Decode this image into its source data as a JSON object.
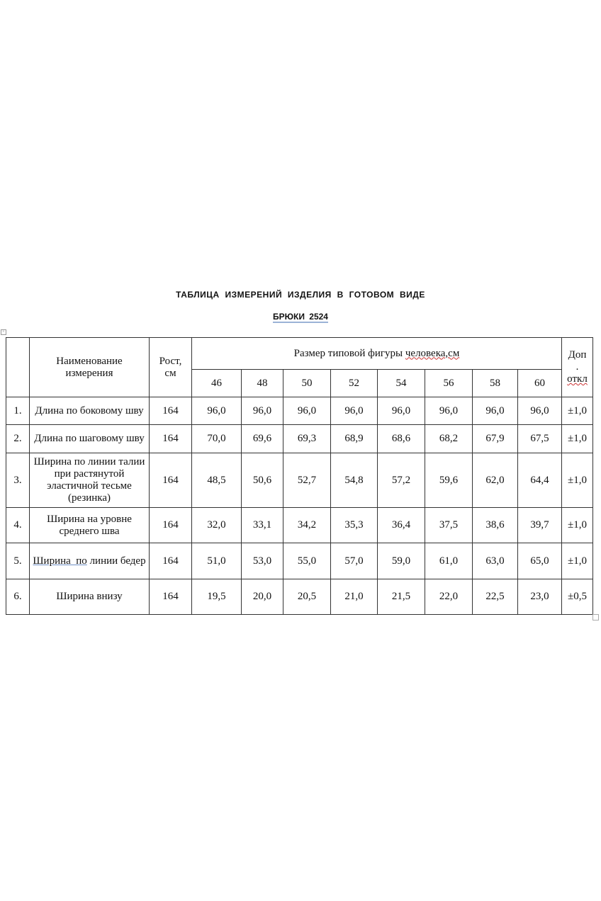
{
  "title": "ТАБЛИЦА ИЗМЕРЕНИЙ ИЗДЕЛИЯ В ГОТОВОМ ВИДЕ",
  "subtitle": "БРЮКИ 2524",
  "table": {
    "headers": {
      "name": "Наименование измерения",
      "height": "Рост, см",
      "size_group": "Размер типовой фигуры человека,см",
      "tolerance_top": "Доп",
      "tolerance_mid": ".",
      "tolerance_bottom": "откл"
    },
    "sizes": [
      "46",
      "48",
      "50",
      "52",
      "54",
      "56",
      "58",
      "60"
    ],
    "rows": [
      {
        "num": "1.",
        "name": "Длина по боковому шву",
        "height": "164",
        "values": [
          "96,0",
          "96,0",
          "96,0",
          "96,0",
          "96,0",
          "96,0",
          "96,0",
          "96,0"
        ],
        "tolerance": "±1,0"
      },
      {
        "num": "2.",
        "name": "Длина по шаговому шву",
        "height": "164",
        "values": [
          "70,0",
          "69,6",
          "69,3",
          "68,9",
          "68,6",
          "68,2",
          "67,9",
          "67,5"
        ],
        "tolerance": "±1,0"
      },
      {
        "num": "3.",
        "name": "Ширина по линии талии при растянутой эластичной тесьме (резинка)",
        "height": "164",
        "values": [
          "48,5",
          "50,6",
          "52,7",
          "54,8",
          "57,2",
          "59,6",
          "62,0",
          "64,4"
        ],
        "tolerance": "±1,0"
      },
      {
        "num": "4.",
        "name": "Ширина на уровне среднего шва",
        "height": "164",
        "values": [
          "32,0",
          "33,1",
          "34,2",
          "35,3",
          "36,4",
          "37,5",
          "38,6",
          "39,7"
        ],
        "tolerance": "±1,0"
      },
      {
        "num": "5.",
        "name": "Ширина  по линии бедер",
        "height": "164",
        "values": [
          "51,0",
          "53,0",
          "55,0",
          "57,0",
          "59,0",
          "61,0",
          "63,0",
          "65,0"
        ],
        "tolerance": "±1,0"
      },
      {
        "num": "6.",
        "name": "Ширина внизу",
        "height": "164",
        "values": [
          "19,5",
          "20,0",
          "20,5",
          "21,0",
          "21,5",
          "22,0",
          "22,5",
          "23,0"
        ],
        "tolerance": "±0,5"
      }
    ]
  }
}
